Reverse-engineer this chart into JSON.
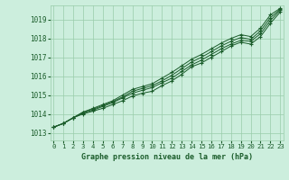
{
  "title": "Graphe pression niveau de la mer (hPa)",
  "bg_color": "#cceedd",
  "grid_color": "#99ccaa",
  "line_color": "#1a5c2a",
  "marker": "+",
  "x_ticks": [
    0,
    1,
    2,
    3,
    4,
    5,
    6,
    7,
    8,
    9,
    10,
    11,
    12,
    13,
    14,
    15,
    16,
    17,
    18,
    19,
    20,
    21,
    22,
    23
  ],
  "y_ticks": [
    1013,
    1014,
    1015,
    1016,
    1017,
    1018,
    1019
  ],
  "ylim": [
    1012.6,
    1019.75
  ],
  "xlim": [
    -0.3,
    23.3
  ],
  "lines": [
    [
      1013.3,
      1013.5,
      1013.8,
      1014.0,
      1014.15,
      1014.3,
      1014.5,
      1014.7,
      1014.95,
      1015.1,
      1015.2,
      1015.5,
      1015.75,
      1016.1,
      1016.5,
      1016.7,
      1017.0,
      1017.3,
      1017.6,
      1017.8,
      1017.7,
      1018.1,
      1018.8,
      1019.4
    ],
    [
      1013.3,
      1013.5,
      1013.8,
      1014.05,
      1014.2,
      1014.4,
      1014.6,
      1014.85,
      1015.1,
      1015.25,
      1015.4,
      1015.65,
      1015.9,
      1016.25,
      1016.6,
      1016.85,
      1017.15,
      1017.45,
      1017.7,
      1017.9,
      1017.85,
      1018.25,
      1018.95,
      1019.5
    ],
    [
      1013.3,
      1013.5,
      1013.8,
      1014.1,
      1014.25,
      1014.45,
      1014.65,
      1014.9,
      1015.2,
      1015.35,
      1015.5,
      1015.75,
      1016.05,
      1016.4,
      1016.75,
      1017.0,
      1017.3,
      1017.6,
      1017.85,
      1018.05,
      1017.95,
      1018.4,
      1019.1,
      1019.55
    ],
    [
      1013.3,
      1013.5,
      1013.8,
      1014.1,
      1014.3,
      1014.5,
      1014.7,
      1015.0,
      1015.3,
      1015.45,
      1015.6,
      1015.9,
      1016.2,
      1016.55,
      1016.9,
      1017.15,
      1017.45,
      1017.75,
      1018.0,
      1018.2,
      1018.1,
      1018.55,
      1019.25,
      1019.6
    ]
  ]
}
